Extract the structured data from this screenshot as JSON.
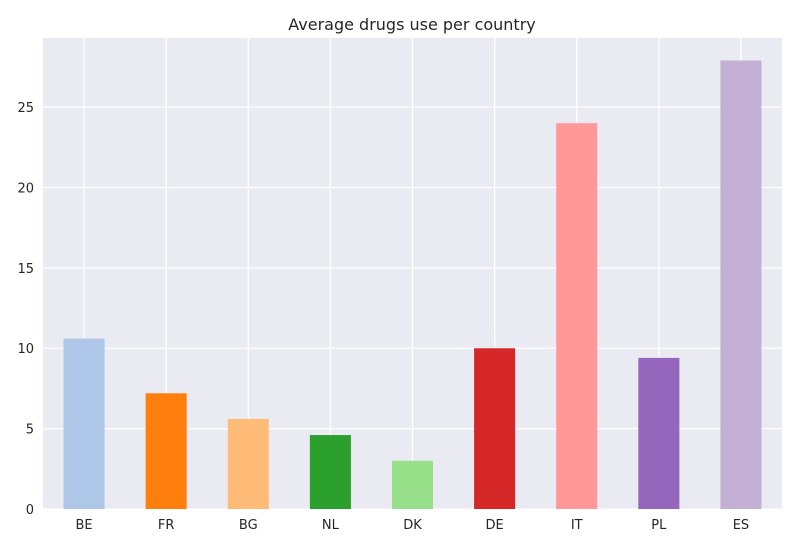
{
  "chart_data": {
    "type": "bar",
    "title": "Average drugs use per country",
    "xlabel": "",
    "ylabel": "",
    "categories": [
      "BE",
      "FR",
      "BG",
      "NL",
      "DK",
      "DE",
      "IT",
      "PL",
      "ES"
    ],
    "values": [
      10.6,
      7.2,
      5.6,
      4.6,
      3.0,
      10.0,
      24.0,
      9.4,
      27.9
    ],
    "colors": [
      "#aec7e8",
      "#ff7f0e",
      "#ffbb78",
      "#2ca02c",
      "#98df8a",
      "#d62728",
      "#ff9896",
      "#9467bd",
      "#c5b0d5"
    ],
    "ylim": [
      0,
      29.3
    ],
    "yticks": [
      0,
      5,
      10,
      15,
      20,
      25
    ],
    "grid": true,
    "background_color": "#eaeaf2",
    "grid_color": "#ffffff"
  }
}
